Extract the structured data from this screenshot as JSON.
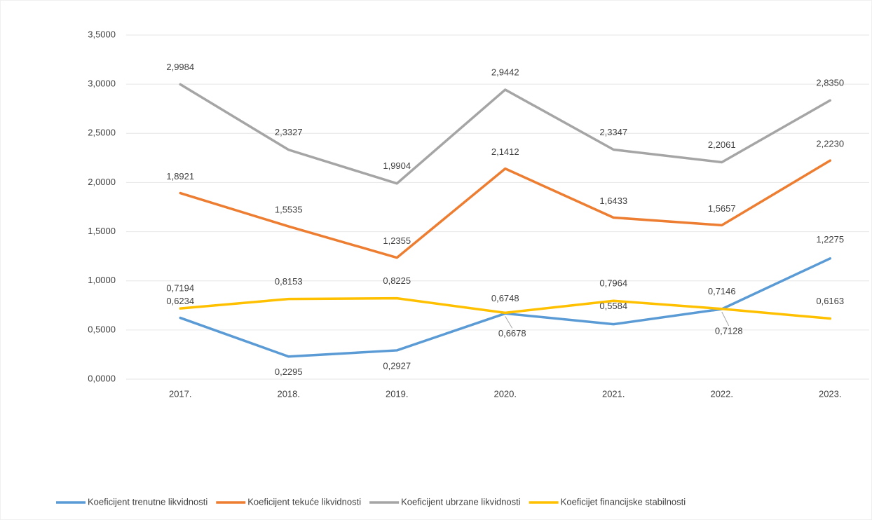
{
  "chart_data": {
    "type": "line",
    "categories": [
      "2017.",
      "2018.",
      "2019.",
      "2020.",
      "2021.",
      "2022.",
      "2023."
    ],
    "series": [
      {
        "name": "Koeficijent trenutne likvidnosti",
        "color": "#5b9bd5",
        "values": [
          0.6234,
          0.2295,
          0.2927,
          0.6678,
          0.5584,
          0.7128,
          1.2275
        ],
        "value_labels": [
          "0,6234",
          "0,2295",
          "0,2927",
          "0,6678",
          "0,5584",
          "0,7128",
          "1,2275"
        ]
      },
      {
        "name": "Koeficijent tekuće likvidnosti",
        "color": "#ed7d31",
        "values": [
          1.8921,
          1.5535,
          1.2355,
          2.1412,
          1.6433,
          1.5657,
          2.223
        ],
        "value_labels": [
          "1,8921",
          "1,5535",
          "1,2355",
          "2,1412",
          "1,6433",
          "1,5657",
          "2,2230"
        ]
      },
      {
        "name": "Koeficijent ubrzane likvidnosti",
        "color": "#a5a5a5",
        "values": [
          2.9984,
          2.3327,
          1.9904,
          2.9442,
          2.3347,
          2.2061,
          2.835
        ],
        "value_labels": [
          "2,9984",
          "2,3327",
          "1,9904",
          "2,9442",
          "2,3347",
          "2,2061",
          "2,8350"
        ]
      },
      {
        "name": "Koeficijet financijske stabilnosti",
        "color": "#ffc000",
        "values": [
          0.7194,
          0.8153,
          0.8225,
          0.6748,
          0.7964,
          0.7146,
          0.6163
        ],
        "value_labels": [
          "0,7194",
          "0,8153",
          "0,8225",
          "0,6748",
          "0,7964",
          "0,7146",
          "0,6163"
        ]
      }
    ],
    "ylim": [
      0,
      3.5
    ],
    "yticks": [
      {
        "value": 0,
        "label": "0,0000"
      },
      {
        "value": 0.5,
        "label": "0,5000"
      },
      {
        "value": 1,
        "label": "1,0000"
      },
      {
        "value": 1.5,
        "label": "1,5000"
      },
      {
        "value": 2,
        "label": "2,0000"
      },
      {
        "value": 2.5,
        "label": "2,5000"
      },
      {
        "value": 3,
        "label": "3,0000"
      },
      {
        "value": 3.5,
        "label": "3,5000"
      }
    ],
    "grid": true,
    "legend": "bottom"
  }
}
